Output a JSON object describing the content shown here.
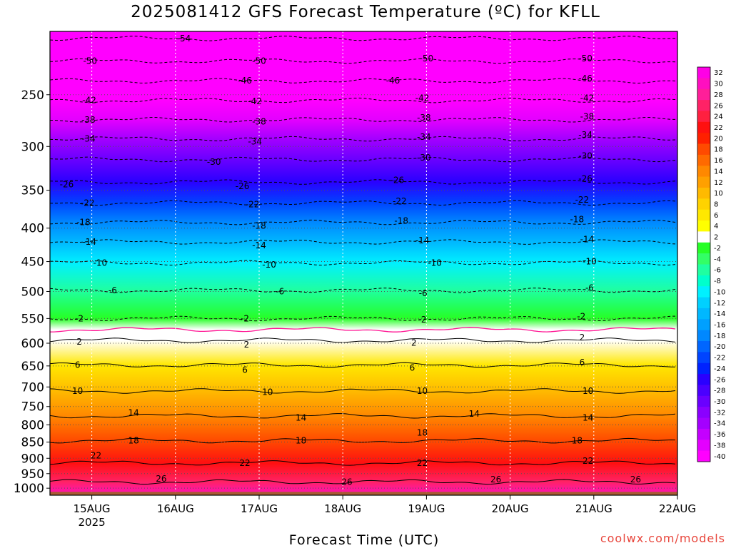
{
  "title": "2025081412 GFS Forecast Temperature (ºC) for KFLL",
  "xlabel": "Forecast Time (UTC)",
  "credit": "coolwx.com/models",
  "chart_data": {
    "type": "heatmap",
    "title": "2025081412 GFS Forecast Temperature (ºC) for KFLL",
    "xlabel": "Forecast Time (UTC)",
    "ylabel": "",
    "x_ticks": [
      {
        "label": "15AUG",
        "sublabel": "2025",
        "day": 15
      },
      {
        "label": "16AUG",
        "sublabel": "",
        "day": 16
      },
      {
        "label": "17AUG",
        "sublabel": "",
        "day": 17
      },
      {
        "label": "18AUG",
        "sublabel": "",
        "day": 18
      },
      {
        "label": "19AUG",
        "sublabel": "",
        "day": 19
      },
      {
        "label": "20AUG",
        "sublabel": "",
        "day": 20
      },
      {
        "label": "21AUG",
        "sublabel": "",
        "day": 21
      },
      {
        "label": "22AUG",
        "sublabel": "",
        "day": 22
      }
    ],
    "xlim_days": [
      14.5,
      22.0
    ],
    "y_ticks": [
      250,
      300,
      350,
      400,
      450,
      500,
      550,
      600,
      650,
      700,
      750,
      800,
      850,
      900,
      950,
      1000
    ],
    "ylim_hpa": [
      1025,
      200
    ],
    "y_scale": "log",
    "grid": true,
    "colorbar": {
      "labels": [
        32,
        30,
        28,
        26,
        24,
        22,
        20,
        18,
        16,
        14,
        12,
        10,
        8,
        6,
        4,
        2,
        -2,
        -4,
        -6,
        -8,
        -10,
        -12,
        -14,
        -16,
        -18,
        -20,
        -22,
        -24,
        -26,
        -28,
        -30,
        -32,
        -34,
        -36,
        -38,
        -40
      ],
      "colors": [
        "#ff00e6",
        "#ff0fc0",
        "#ff1f99",
        "#ff2266",
        "#ff2040",
        "#ff1010",
        "#ff2000",
        "#ff4a00",
        "#ff6a00",
        "#ff8800",
        "#ffa000",
        "#ffba00",
        "#ffd200",
        "#ffe800",
        "#ffff00",
        "#ffffff",
        "#26ff26",
        "#33ff66",
        "#1fffa0",
        "#00ffcc",
        "#00f0ff",
        "#00d0ff",
        "#00b8ff",
        "#00a0ff",
        "#0088ff",
        "#0066ff",
        "#0044ff",
        "#0022ff",
        "#2a00ff",
        "#4a00ff",
        "#6a00ff",
        "#8a00ff",
        "#a400ff",
        "#c400ff",
        "#e400ff",
        "#ff00ff"
      ]
    },
    "isotherms": [
      {
        "value": -54,
        "level": 205
      },
      {
        "value": -50,
        "level": 222
      },
      {
        "value": -46,
        "level": 238
      },
      {
        "value": -42,
        "level": 255
      },
      {
        "value": -38,
        "level": 273
      },
      {
        "value": -34,
        "level": 292
      },
      {
        "value": -30,
        "level": 314
      },
      {
        "value": -26,
        "level": 340
      },
      {
        "value": -22,
        "level": 366
      },
      {
        "value": -18,
        "level": 392
      },
      {
        "value": -14,
        "level": 420
      },
      {
        "value": -10,
        "level": 452
      },
      {
        "value": -6,
        "level": 498
      },
      {
        "value": -2,
        "level": 550
      },
      {
        "value": 0,
        "level": 572
      },
      {
        "value": 2,
        "level": 594
      },
      {
        "value": 6,
        "level": 648
      },
      {
        "value": 10,
        "level": 710
      },
      {
        "value": 14,
        "level": 775
      },
      {
        "value": 18,
        "level": 846
      },
      {
        "value": 22,
        "level": 915
      },
      {
        "value": 26,
        "level": 978
      }
    ],
    "isotherm_labels": [
      {
        "text": "-54",
        "day": 16.1,
        "level": 205
      },
      {
        "text": "-50",
        "day": 14.98,
        "level": 222
      },
      {
        "text": "-50",
        "day": 17.0,
        "level": 222
      },
      {
        "text": "-50",
        "day": 19.0,
        "level": 220
      },
      {
        "text": "-50",
        "day": 20.9,
        "level": 220
      },
      {
        "text": "-46",
        "day": 16.83,
        "level": 238
      },
      {
        "text": "-46",
        "day": 18.6,
        "level": 238
      },
      {
        "text": "-46",
        "day": 20.9,
        "level": 236
      },
      {
        "text": "-42",
        "day": 14.97,
        "level": 255
      },
      {
        "text": "-42",
        "day": 16.95,
        "level": 256
      },
      {
        "text": "-42",
        "day": 18.95,
        "level": 253
      },
      {
        "text": "-42",
        "day": 20.92,
        "level": 253
      },
      {
        "text": "-38",
        "day": 14.96,
        "level": 273
      },
      {
        "text": "-38",
        "day": 17.0,
        "level": 275
      },
      {
        "text": "-38",
        "day": 18.97,
        "level": 271
      },
      {
        "text": "-38",
        "day": 20.92,
        "level": 270
      },
      {
        "text": "-34",
        "day": 14.96,
        "level": 292
      },
      {
        "text": "-34",
        "day": 16.95,
        "level": 295
      },
      {
        "text": "-34",
        "day": 18.97,
        "level": 290
      },
      {
        "text": "-34",
        "day": 20.9,
        "level": 288
      },
      {
        "text": "-30",
        "day": 16.46,
        "level": 317
      },
      {
        "text": "-30",
        "day": 18.97,
        "level": 312
      },
      {
        "text": "-30",
        "day": 20.9,
        "level": 310
      },
      {
        "text": "-26",
        "day": 14.7,
        "level": 343
      },
      {
        "text": "-26",
        "day": 16.8,
        "level": 345
      },
      {
        "text": "-26",
        "day": 18.65,
        "level": 338
      },
      {
        "text": "-26",
        "day": 20.9,
        "level": 336
      },
      {
        "text": "-22",
        "day": 14.95,
        "level": 366
      },
      {
        "text": "-22",
        "day": 16.92,
        "level": 368
      },
      {
        "text": "-22",
        "day": 18.68,
        "level": 364
      },
      {
        "text": "-22",
        "day": 20.86,
        "level": 362
      },
      {
        "text": "-18",
        "day": 14.9,
        "level": 392
      },
      {
        "text": "-18",
        "day": 17.0,
        "level": 397
      },
      {
        "text": "-18",
        "day": 18.7,
        "level": 390
      },
      {
        "text": "-18",
        "day": 20.8,
        "level": 388
      },
      {
        "text": "-14",
        "day": 14.97,
        "level": 420
      },
      {
        "text": "-14",
        "day": 17.0,
        "level": 425
      },
      {
        "text": "-14",
        "day": 18.95,
        "level": 418
      },
      {
        "text": "-14",
        "day": 20.92,
        "level": 416
      },
      {
        "text": "-10",
        "day": 15.1,
        "level": 452
      },
      {
        "text": "-10",
        "day": 17.12,
        "level": 455
      },
      {
        "text": "-10",
        "day": 19.1,
        "level": 452
      },
      {
        "text": "-10",
        "day": 20.95,
        "level": 450
      },
      {
        "text": "-6",
        "day": 15.25,
        "level": 498
      },
      {
        "text": "-6",
        "day": 17.25,
        "level": 500
      },
      {
        "text": "-6",
        "day": 18.96,
        "level": 503
      },
      {
        "text": "-6",
        "day": 20.95,
        "level": 494
      },
      {
        "text": "-2",
        "day": 14.85,
        "level": 550
      },
      {
        "text": "-2",
        "day": 16.83,
        "level": 550
      },
      {
        "text": "-2",
        "day": 18.95,
        "level": 552
      },
      {
        "text": "-2",
        "day": 20.85,
        "level": 546
      },
      {
        "text": "2",
        "day": 14.85,
        "level": 597
      },
      {
        "text": "2",
        "day": 16.85,
        "level": 603
      },
      {
        "text": "2",
        "day": 18.85,
        "level": 599
      },
      {
        "text": "2",
        "day": 20.86,
        "level": 588
      },
      {
        "text": "6",
        "day": 14.83,
        "level": 648
      },
      {
        "text": "6",
        "day": 16.83,
        "level": 659
      },
      {
        "text": "6",
        "day": 18.83,
        "level": 654
      },
      {
        "text": "6",
        "day": 20.86,
        "level": 642
      },
      {
        "text": "10",
        "day": 14.83,
        "level": 710
      },
      {
        "text": "10",
        "day": 17.1,
        "level": 713
      },
      {
        "text": "10",
        "day": 18.95,
        "level": 710
      },
      {
        "text": "10",
        "day": 20.93,
        "level": 710
      },
      {
        "text": "14",
        "day": 15.5,
        "level": 767
      },
      {
        "text": "14",
        "day": 17.5,
        "level": 780
      },
      {
        "text": "14",
        "day": 19.57,
        "level": 770
      },
      {
        "text": "14",
        "day": 20.93,
        "level": 780
      },
      {
        "text": "18",
        "day": 15.5,
        "level": 846
      },
      {
        "text": "18",
        "day": 17.5,
        "level": 846
      },
      {
        "text": "18",
        "day": 18.95,
        "level": 823
      },
      {
        "text": "18",
        "day": 20.8,
        "level": 846
      },
      {
        "text": "22",
        "day": 15.05,
        "level": 892
      },
      {
        "text": "22",
        "day": 16.83,
        "level": 915
      },
      {
        "text": "22",
        "day": 18.95,
        "level": 915
      },
      {
        "text": "22",
        "day": 20.93,
        "level": 908
      },
      {
        "text": "26",
        "day": 15.83,
        "level": 968
      },
      {
        "text": "26",
        "day": 18.05,
        "level": 978
      },
      {
        "text": "26",
        "day": 19.83,
        "level": 970
      },
      {
        "text": "26",
        "day": 21.5,
        "level": 970
      }
    ],
    "ground_level_hpa": 1013
  }
}
